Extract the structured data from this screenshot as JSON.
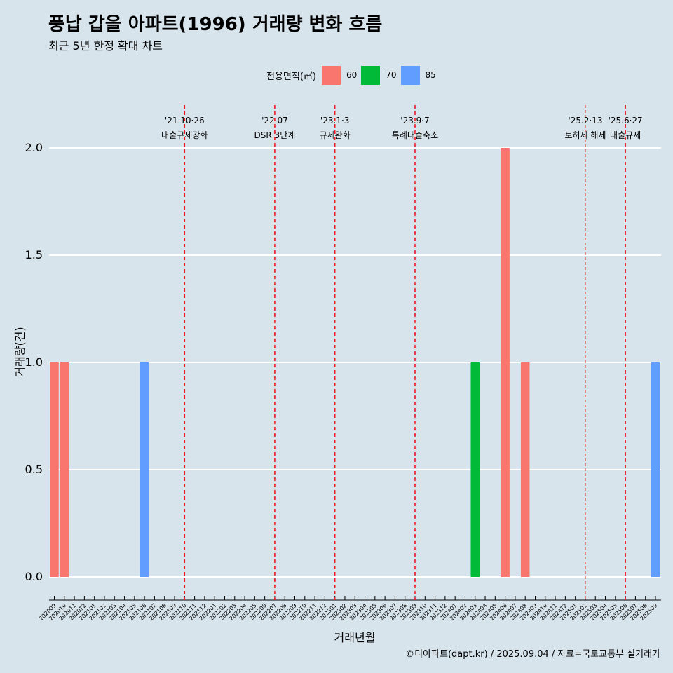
{
  "header": {
    "title": "풍납 갑을 아파트(1996) 거래량 변화 흐름",
    "subtitle": "최근 5년 한정 확대 차트"
  },
  "legend": {
    "title": "전용면적(㎡)",
    "items": [
      {
        "label": "60",
        "color": "#F8766D"
      },
      {
        "label": "70",
        "color": "#00BA38"
      },
      {
        "label": "85",
        "color": "#619CFF"
      }
    ]
  },
  "caption": "©디아파트(dapt.kr) / 2025.09.04 / 자료=국토교통부 실거래가",
  "chart_data": {
    "type": "bar",
    "title": "풍납 갑을 아파트(1996) 거래량 변화 흐름",
    "subtitle": "최근 5년 한정 확대 차트",
    "xlabel": "거래년월",
    "ylabel": "거래량(건)",
    "ylim": [
      0,
      2.2
    ],
    "yticks": [
      0.0,
      0.5,
      1.0,
      1.5,
      2.0
    ],
    "ytick_labels": [
      "0.0",
      "0.5",
      "1.0",
      "1.5",
      "2.0"
    ],
    "grid": "horizontal",
    "legend_position": "top",
    "categories": [
      "202009",
      "202010",
      "202011",
      "202012",
      "202101",
      "202102",
      "202103",
      "202104",
      "202105",
      "202106",
      "202107",
      "202108",
      "202109",
      "202110",
      "202111",
      "202112",
      "202201",
      "202202",
      "202203",
      "202204",
      "202205",
      "202206",
      "202207",
      "202208",
      "202209",
      "202210",
      "202211",
      "202212",
      "202301",
      "202302",
      "202303",
      "202304",
      "202305",
      "202306",
      "202307",
      "202308",
      "202309",
      "202310",
      "202311",
      "202312",
      "202401",
      "202402",
      "202403",
      "202404",
      "202405",
      "202406",
      "202407",
      "202408",
      "202409",
      "202410",
      "202411",
      "202412",
      "202501",
      "202502",
      "202503",
      "202504",
      "202505",
      "202506",
      "202507",
      "202508",
      "202509"
    ],
    "bars": [
      {
        "x": "202009",
        "series": "60",
        "value": 1
      },
      {
        "x": "202010",
        "series": "60",
        "value": 1
      },
      {
        "x": "202106",
        "series": "85",
        "value": 1
      },
      {
        "x": "202403",
        "series": "70",
        "value": 1
      },
      {
        "x": "202406",
        "series": "60",
        "value": 2
      },
      {
        "x": "202408",
        "series": "60",
        "value": 1
      },
      {
        "x": "202509",
        "series": "85",
        "value": 1
      }
    ],
    "events": [
      {
        "x": "202110",
        "date": "'21.10·26",
        "label": "대출규제강화",
        "style": "dashed"
      },
      {
        "x": "202207",
        "date": "'22.07",
        "label": "DSR 3단계",
        "style": "dashed"
      },
      {
        "x": "202301",
        "date": "'23.1·3",
        "label": "규제완화",
        "style": "dashed"
      },
      {
        "x": "202309",
        "date": "'23.9·7",
        "label": "특례대출축소",
        "style": "dashed"
      },
      {
        "x": "202502",
        "date": "'25.2·13",
        "label": "토허제 해제",
        "style": "thin-dashed"
      },
      {
        "x": "202506",
        "date": "'25.6·27",
        "label": "대출규제",
        "style": "dashed"
      }
    ]
  }
}
